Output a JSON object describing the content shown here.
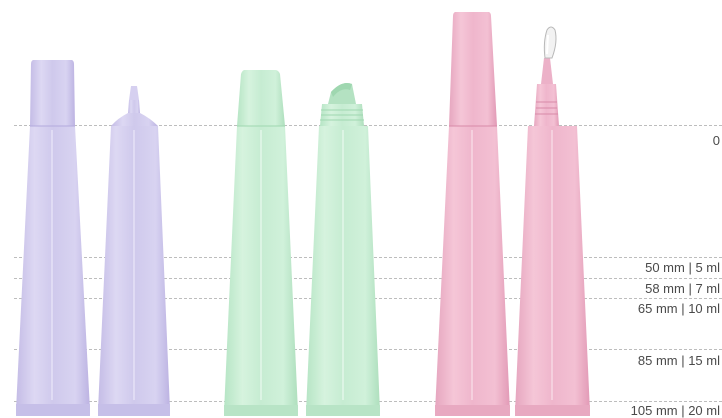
{
  "image": {
    "subject": "cosmetic squeeze tubes with caps and applicator tips",
    "colors": {
      "lavender": "#cfc9ec",
      "lavender_dark": "#b9b1e0",
      "mint": "#c6ecd2",
      "mint_dark": "#a9dfba",
      "pink": "#efb6cc",
      "pink_dark": "#e39cb8",
      "guide_line": "#bdbdbd",
      "label_text": "#4a4a4a"
    }
  },
  "size_scale": {
    "zero_label": "0",
    "labels": [
      "50 mm | 5 ml",
      "58 mm | 7 ml",
      "65 mm | 10 ml",
      "85 mm | 15 ml",
      "105 mm | 20 ml"
    ]
  }
}
